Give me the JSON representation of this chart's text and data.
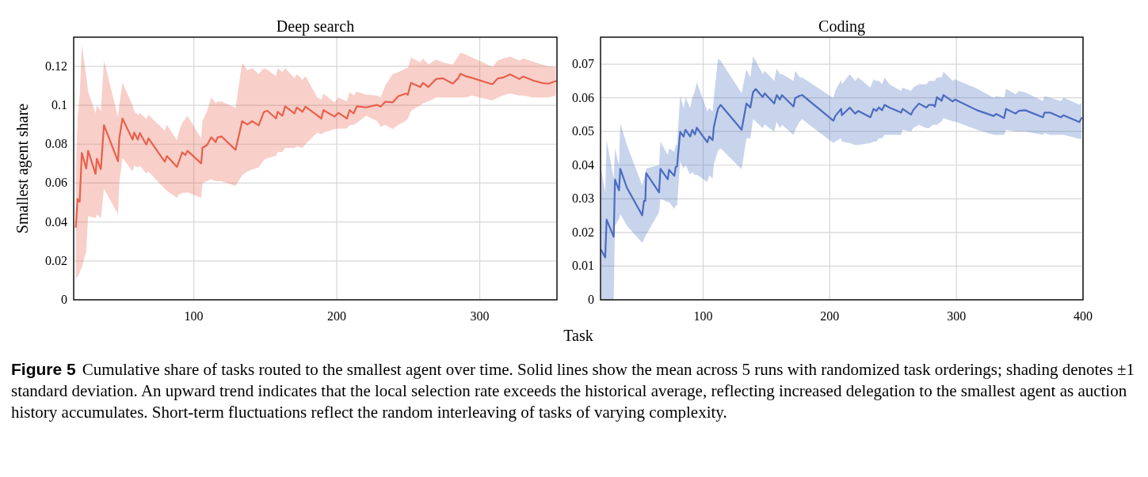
{
  "chart_data": [
    {
      "type": "line",
      "title": "Deep search",
      "xlabel": "Task",
      "ylabel": "Smallest agent share",
      "xlim": [
        16,
        354
      ],
      "xticks": [
        100,
        200,
        300
      ],
      "ylim": [
        0,
        0.135
      ],
      "yticks": [
        0,
        0.02,
        0.04,
        0.06,
        0.08,
        0.1,
        0.12
      ],
      "grid": true,
      "annotations": [
        "Figure 5",
        "Cumulative share of tasks routed to the smallest agent over time. Solid lines show the mean across 5 runs with randomized task orderings; shading denotes ±1 standard deviation. An upward trend indicates that the local selection rate exceeds the historical average, reflecting increased delegation to the smallest agent as auction history accumulates. Short-term fluctuations reflect the random interleaving of tasks of varying complexity."
      ],
      "series": [
        {
          "color": "#e8604c",
          "x": [
            17.5,
            18.7,
            20.2,
            21.7,
            24.8,
            26.1,
            31.3,
            32.2,
            35.0,
            37.2,
            47.0,
            47.9,
            50.1,
            57.2,
            58.3,
            60.8,
            62.3,
            66.8,
            68.3,
            79.7,
            81.2,
            88.2,
            89.5,
            91.9,
            94.1,
            95.6,
            105.2,
            106.1,
            109.3,
            112.2,
            115.3,
            116.6,
            119.4,
            129.2,
            133.8,
            137.5,
            140.8,
            145.4,
            149.1,
            151.4,
            157.5,
            158.7,
            162.0,
            163.9,
            170.4,
            172.1,
            176.0,
            178.1,
            186.4,
            189.2,
            190.7,
            198.4,
            201.2,
            207.1,
            209.0,
            211.7,
            214.1,
            220.6,
            228.0,
            230.7,
            233.9,
            239.0,
            243.1,
            248.3,
            249.7,
            251.9,
            258.4,
            260.3,
            264.0,
            269.5,
            274.1,
            281.1,
            284.8,
            286.5,
            290.7,
            294.5,
            305.5,
            308.9,
            312.6,
            316.2,
            321.2,
            327.7,
            330.5,
            337.0,
            343.4,
            348.0,
            353.2
          ],
          "values": [
            0.0374,
            0.0518,
            0.0504,
            0.0755,
            0.0674,
            0.0766,
            0.0647,
            0.0725,
            0.0671,
            0.0898,
            0.0712,
            0.083,
            0.0932,
            0.0823,
            0.086,
            0.0823,
            0.0857,
            0.0798,
            0.083,
            0.071,
            0.0739,
            0.0683,
            0.0708,
            0.0758,
            0.0744,
            0.0766,
            0.0701,
            0.0782,
            0.0796,
            0.0836,
            0.081,
            0.0834,
            0.084,
            0.0771,
            0.0918,
            0.0901,
            0.0918,
            0.0897,
            0.0966,
            0.0972,
            0.0932,
            0.0966,
            0.0946,
            0.0995,
            0.0958,
            0.0989,
            0.0966,
            0.0993,
            0.0948,
            0.0932,
            0.0975,
            0.0942,
            0.0961,
            0.0932,
            0.0975,
            0.0958,
            0.0995,
            0.0989,
            0.1002,
            0.0993,
            0.1018,
            0.1015,
            0.1047,
            0.106,
            0.1054,
            0.1115,
            0.1094,
            0.1115,
            0.1094,
            0.1135,
            0.1139,
            0.1111,
            0.1138,
            0.1162,
            0.1148,
            0.1141,
            0.1115,
            0.1108,
            0.1138,
            0.1142,
            0.1159,
            0.1135,
            0.1148,
            0.1128,
            0.1115,
            0.1111,
            0.1124
          ],
          "lower": [
            0.011,
            0.012,
            0.014,
            0.017,
            0.025,
            0.043,
            0.042,
            0.044,
            0.042,
            0.057,
            0.044,
            0.06,
            0.073,
            0.066,
            0.069,
            0.068,
            0.069,
            0.065,
            0.066,
            0.057,
            0.056,
            0.0525,
            0.054,
            0.055,
            0.055,
            0.0552,
            0.0525,
            0.06,
            0.061,
            0.062,
            0.061,
            0.061,
            0.061,
            0.0586,
            0.064,
            0.066,
            0.067,
            0.068,
            0.072,
            0.0728,
            0.074,
            0.076,
            0.076,
            0.0782,
            0.078,
            0.079,
            0.078,
            0.08,
            0.086,
            0.085,
            0.086,
            0.0877,
            0.088,
            0.088,
            0.0898,
            0.09,
            0.091,
            0.0945,
            0.092,
            0.089,
            0.09,
            0.0877,
            0.09,
            0.092,
            0.093,
            0.0972,
            0.1,
            0.101,
            0.102,
            0.104,
            0.104,
            0.104,
            0.104,
            0.104,
            0.104,
            0.105,
            0.103,
            0.1025,
            0.104,
            0.105,
            0.106,
            0.105,
            0.105,
            0.104,
            0.104,
            0.104,
            0.105
          ],
          "upper": [
            0.065,
            0.093,
            0.105,
            0.131,
            0.115,
            0.107,
            0.096,
            0.1,
            0.097,
            0.123,
            0.094,
            0.1,
            0.1115,
            0.1,
            0.097,
            0.095,
            0.096,
            0.093,
            0.095,
            0.087,
            0.09,
            0.082,
            0.086,
            0.091,
            0.093,
            0.0945,
            0.083,
            0.092,
            0.097,
            0.104,
            0.101,
            0.102,
            0.102,
            0.0986,
            0.1217,
            0.118,
            0.119,
            0.116,
            0.119,
            0.1183,
            0.115,
            0.119,
            0.117,
            0.119,
            0.114,
            0.116,
            0.113,
            0.115,
            0.104,
            0.103,
            0.106,
            0.1015,
            0.104,
            0.102,
            0.1067,
            0.105,
            0.107,
            0.1054,
            0.105,
            0.104,
            0.11,
            0.116,
            0.117,
            0.119,
            0.119,
            0.1245,
            0.122,
            0.124,
            0.121,
            0.1235,
            0.122,
            0.121,
            0.125,
            0.127,
            0.126,
            0.1245,
            0.121,
            0.1196,
            0.123,
            0.124,
            0.125,
            0.123,
            0.124,
            0.1225,
            0.121,
            0.12,
            0.1196
          ]
        }
      ]
    },
    {
      "type": "line",
      "title": "Coding",
      "xlim": [
        19,
        400
      ],
      "xticks": [
        100,
        200,
        300,
        400
      ],
      "ylim": [
        0,
        0.078
      ],
      "yticks": [
        0,
        0.01,
        0.02,
        0.03,
        0.04,
        0.05,
        0.06,
        0.07
      ],
      "grid": true,
      "series": [
        {
          "color": "#4a6cc0",
          "x": [
            19.4,
            22.7,
            23.8,
            29.4,
            30.4,
            33.6,
            34.6,
            39.8,
            51.9,
            53.3,
            54.4,
            55.0,
            65.2,
            66.3,
            72.1,
            73.1,
            77.3,
            78.3,
            79.4,
            81.9,
            84.6,
            86.1,
            89.8,
            91.5,
            93.5,
            95.0,
            103.3,
            104.8,
            107.5,
            108.5,
            111.7,
            113.8,
            130.4,
            134.2,
            137.3,
            139.4,
            141.5,
            147.1,
            148.6,
            156.1,
            158.1,
            160.6,
            162.3,
            171.4,
            172.7,
            176.3,
            178.3,
            202.9,
            204.4,
            209.0,
            209.6,
            215.8,
            220.0,
            222.5,
            232.1,
            234.6,
            236.7,
            238.8,
            241.3,
            243.3,
            247.1,
            256.4,
            257.5,
            264.2,
            265.8,
            270.4,
            276.3,
            278.3,
            281.5,
            283.0,
            284.6,
            288.3,
            289.8,
            297.1,
            298.8,
            316.3,
            329.4,
            331.4,
            337.7,
            339.2,
            346.7,
            349.2,
            354.4,
            368.3,
            369.6,
            373.8,
            382.5,
            384.6,
            397.1,
            398.8
          ],
          "values": [
            0.0148,
            0.0126,
            0.0238,
            0.0187,
            0.0357,
            0.0325,
            0.0389,
            0.0333,
            0.0251,
            0.0294,
            0.0294,
            0.0376,
            0.0319,
            0.0389,
            0.0358,
            0.0386,
            0.0368,
            0.0394,
            0.0396,
            0.0499,
            0.0485,
            0.0505,
            0.0485,
            0.0505,
            0.0491,
            0.0511,
            0.0468,
            0.0485,
            0.0474,
            0.0514,
            0.0567,
            0.0579,
            0.0505,
            0.0583,
            0.0571,
            0.0616,
            0.0626,
            0.0602,
            0.0613,
            0.0583,
            0.0608,
            0.0595,
            0.0608,
            0.0574,
            0.0599,
            0.0606,
            0.0608,
            0.0532,
            0.0546,
            0.0567,
            0.0548,
            0.0571,
            0.0553,
            0.0561,
            0.0542,
            0.0567,
            0.0561,
            0.0571,
            0.0563,
            0.0579,
            0.0571,
            0.0556,
            0.0567,
            0.055,
            0.0563,
            0.0583,
            0.0571,
            0.0579,
            0.0579,
            0.0574,
            0.0602,
            0.0591,
            0.0608,
            0.0589,
            0.0595,
            0.0563,
            0.0546,
            0.0552,
            0.054,
            0.0567,
            0.0553,
            0.0561,
            0.0563,
            0.0542,
            0.0556,
            0.0556,
            0.0542,
            0.0548,
            0.0528,
            0.054
          ],
          "lower": [
            0,
            0,
            0,
            0,
            0.022,
            0.024,
            0.0255,
            0.022,
            0.0169,
            0.018,
            0.019,
            0.0193,
            0.026,
            0.03,
            0.029,
            0.029,
            0.027,
            0.028,
            0.028,
            0.041,
            0.039,
            0.04,
            0.0372,
            0.038,
            0.037,
            0.0372,
            0.035,
            0.037,
            0.036,
            0.0403,
            0.0443,
            0.045,
            0.0388,
            0.048,
            0.048,
            0.0536,
            0.053,
            0.051,
            0.0521,
            0.05,
            0.0529,
            0.051,
            0.052,
            0.049,
            0.0505,
            0.053,
            0.0536,
            0.0466,
            0.047,
            0.048,
            0.047,
            0.0466,
            0.046,
            0.046,
            0.0466,
            0.047,
            0.047,
            0.048,
            0.048,
            0.049,
            0.049,
            0.049,
            0.0505,
            0.05,
            0.051,
            0.052,
            0.051,
            0.051,
            0.052,
            0.052,
            0.052,
            0.053,
            0.054,
            0.053,
            0.053,
            0.0505,
            0.049,
            0.049,
            0.049,
            0.0505,
            0.05,
            0.05,
            0.05,
            0.049,
            0.0496,
            0.049,
            0.049,
            0.049,
            0.0478,
            0.0478
          ],
          "upper": [
            0.039,
            0.032,
            0.0474,
            0.036,
            0.045,
            0.04,
            0.0524,
            0.046,
            0.034,
            0.036,
            0.037,
            0.039,
            0.04,
            0.047,
            0.043,
            0.045,
            0.044,
            0.046,
            0.046,
            0.0607,
            0.057,
            0.06,
            0.057,
            0.06,
            0.062,
            0.0646,
            0.056,
            0.057,
            0.056,
            0.06,
            0.0716,
            0.071,
            0.0614,
            0.0684,
            0.066,
            0.0723,
            0.071,
            0.067,
            0.068,
            0.065,
            0.0687,
            0.067,
            0.067,
            0.065,
            0.068,
            0.066,
            0.066,
            0.0599,
            0.062,
            0.0654,
            0.064,
            0.067,
            0.065,
            0.066,
            0.063,
            0.0655,
            0.065,
            0.065,
            0.064,
            0.066,
            0.064,
            0.062,
            0.063,
            0.062,
            0.063,
            0.064,
            0.064,
            0.065,
            0.065,
            0.065,
            0.066,
            0.066,
            0.0677,
            0.065,
            0.0655,
            0.0627,
            0.06,
            0.0605,
            0.06,
            0.0627,
            0.061,
            0.062,
            0.0616,
            0.059,
            0.0605,
            0.06,
            0.059,
            0.06,
            0.058,
            0.0585
          ]
        }
      ]
    }
  ]
}
